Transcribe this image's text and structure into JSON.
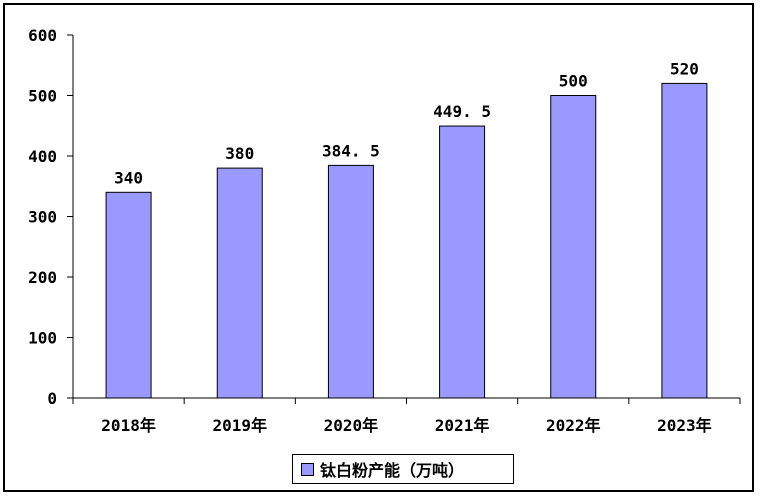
{
  "colors": {
    "bar_fill": "#9999ff",
    "bar_stroke": "#000000",
    "axis": "#000000",
    "background": "#ffffff"
  },
  "chart_data": {
    "type": "bar",
    "title": "",
    "xlabel": "",
    "ylabel": "",
    "categories": [
      "2018年",
      "2019年",
      "2020年",
      "2021年",
      "2022年",
      "2023年"
    ],
    "series": [
      {
        "name": "钛白粉产能（万吨）",
        "values": [
          340,
          380,
          384.5,
          449.5,
          500,
          520
        ],
        "value_labels": [
          "340",
          "380",
          "384. 5",
          "449. 5",
          "500",
          "520"
        ]
      }
    ],
    "ylim": [
      0,
      600
    ],
    "yticks": [
      0,
      100,
      200,
      300,
      400,
      500,
      600
    ],
    "ytick_labels": [
      "0",
      "100",
      "200",
      "300",
      "400",
      "500",
      "600"
    ],
    "grid": false,
    "legend_position": "bottom"
  }
}
